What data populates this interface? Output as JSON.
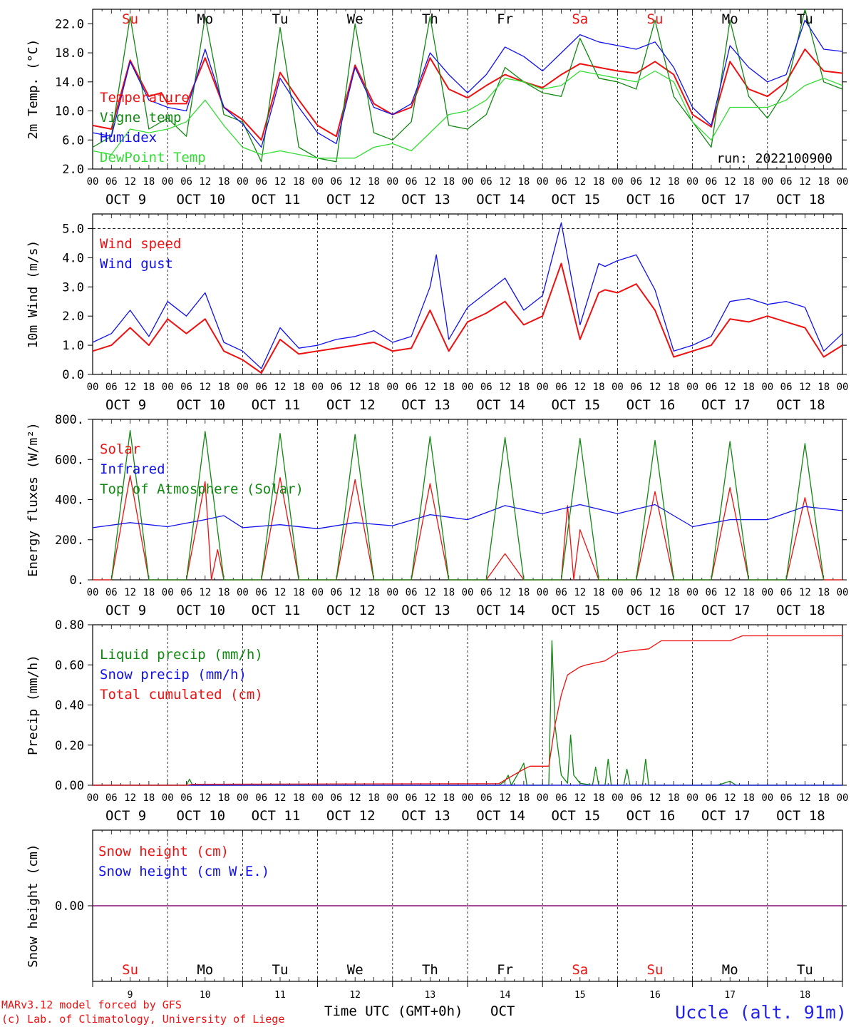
{
  "meteogram": {
    "location": "Uccle (alt. 91m)",
    "run_label": "run: 2022100900",
    "footer_line1": "MARv3.12 model forced by GFS",
    "footer_line2": "(c) Lab. of Climatology, University of Liege",
    "time_axis_label": "Time UTC (GMT+0h)",
    "month_label": "OCT",
    "hour_ticks": [
      "00",
      "06",
      "12",
      "18"
    ],
    "date_labels": [
      "OCT  9",
      "OCT 10",
      "OCT 11",
      "OCT 12",
      "OCT 13",
      "OCT 14",
      "OCT 15",
      "OCT 16",
      "OCT 17",
      "OCT 18"
    ],
    "day_numbers": [
      "9",
      "10",
      "11",
      "12",
      "13",
      "14",
      "15",
      "16",
      "17",
      "18"
    ],
    "weekdays": [
      "Su",
      "Mo",
      "Tu",
      "We",
      "Th",
      "Fr",
      "Sa",
      "Su",
      "Mo",
      "Tu"
    ],
    "weekend_flags": [
      true,
      false,
      false,
      false,
      false,
      false,
      true,
      true,
      false,
      false
    ],
    "colors": {
      "red": "#ee1111",
      "green": "#118811",
      "blue": "#1111ee",
      "lightgreen": "#33dd33",
      "purple": "#882288",
      "axis": "#000000",
      "location": "#2222ee"
    }
  },
  "chart_data": [
    {
      "id": "temperature",
      "type": "line",
      "ylabel": "2m Temp. (°C)",
      "ylim": [
        2,
        24
      ],
      "yticks": [
        2.0,
        6.0,
        10.0,
        14.0,
        18.0,
        22.0
      ],
      "ytick_labels": [
        "2.0",
        "6.0",
        "10.0",
        "14.0",
        "18.0",
        "22.0"
      ],
      "x_unit": "hours since 2022-10-09 00 UTC",
      "grid": "dashed vertical lines at midnight",
      "series": [
        {
          "name": "Temperature",
          "color": "red",
          "x": [
            0,
            6,
            12,
            18,
            22,
            24,
            30,
            36,
            42,
            48,
            54,
            60,
            66,
            72,
            78,
            84,
            90,
            96,
            102,
            108,
            114,
            120,
            126,
            132,
            138,
            144,
            150,
            156,
            162,
            168,
            174,
            180,
            186,
            192,
            198,
            204,
            210,
            216,
            222,
            228,
            234,
            240
          ],
          "y": [
            8.0,
            7.5,
            17.0,
            12.0,
            12.5,
            11.0,
            11.0,
            17.3,
            10.5,
            8.8,
            6.0,
            15.3,
            11.5,
            8.0,
            6.5,
            16.3,
            11.0,
            9.5,
            10.5,
            17.3,
            13.0,
            11.8,
            13.5,
            15.0,
            14.0,
            13.2,
            15.0,
            16.5,
            16.0,
            15.5,
            15.2,
            16.8,
            15.0,
            9.5,
            7.8,
            16.8,
            13.0,
            12.0,
            14.0,
            18.5,
            15.5,
            15.2
          ]
        },
        {
          "name": "Vigne temp",
          "color": "green",
          "x": [
            0,
            6,
            12,
            18,
            24,
            30,
            36,
            42,
            48,
            54,
            60,
            66,
            72,
            78,
            84,
            90,
            96,
            102,
            108,
            114,
            120,
            126,
            132,
            138,
            144,
            150,
            156,
            162,
            168,
            174,
            180,
            186,
            192,
            198,
            204,
            210,
            216,
            222,
            228,
            234,
            240
          ],
          "y": [
            5.0,
            6.5,
            23.0,
            7.5,
            9.0,
            6.5,
            23.0,
            9.5,
            8.5,
            3.0,
            21.5,
            5.0,
            3.5,
            3.0,
            22.0,
            7.0,
            6.0,
            8.5,
            23.0,
            8.0,
            7.5,
            9.5,
            16.0,
            14.0,
            12.5,
            12.0,
            20.0,
            14.5,
            14.0,
            13.0,
            22.5,
            12.0,
            8.5,
            5.0,
            22.5,
            12.0,
            9.0,
            13.0,
            24.0,
            14.0,
            13.0
          ]
        },
        {
          "name": "Humidex",
          "color": "blue",
          "x": [
            0,
            6,
            12,
            18,
            24,
            30,
            36,
            42,
            48,
            54,
            60,
            66,
            72,
            78,
            84,
            90,
            96,
            102,
            108,
            114,
            120,
            126,
            132,
            138,
            144,
            150,
            156,
            162,
            168,
            174,
            180,
            186,
            192,
            198,
            204,
            210,
            216,
            222,
            228,
            234,
            240
          ],
          "y": [
            7.0,
            6.5,
            16.8,
            11.5,
            10.5,
            10.0,
            18.5,
            10.5,
            8.2,
            5.0,
            14.5,
            10.5,
            7.0,
            5.5,
            16.0,
            10.5,
            9.5,
            11.0,
            18.0,
            15.0,
            12.5,
            15.0,
            18.8,
            17.5,
            15.5,
            18.0,
            20.5,
            19.5,
            19.0,
            18.5,
            19.5,
            16.0,
            10.5,
            8.0,
            19.0,
            16.0,
            14.0,
            15.0,
            22.5,
            18.5,
            18.2
          ]
        },
        {
          "name": "DewPoint Temp",
          "color": "lightgreen",
          "x": [
            0,
            6,
            12,
            18,
            24,
            30,
            36,
            42,
            48,
            54,
            60,
            66,
            72,
            78,
            84,
            90,
            96,
            102,
            108,
            114,
            120,
            126,
            132,
            138,
            144,
            150,
            156,
            162,
            168,
            174,
            180,
            186,
            192,
            198,
            204,
            210,
            216,
            222,
            228,
            234,
            240
          ],
          "y": [
            4.5,
            4.0,
            7.5,
            7.0,
            7.5,
            8.5,
            11.5,
            8.0,
            5.0,
            4.0,
            4.5,
            4.0,
            3.5,
            3.5,
            3.5,
            5.0,
            5.5,
            4.5,
            7.0,
            9.5,
            10.0,
            11.5,
            14.5,
            14.0,
            13.0,
            13.5,
            15.5,
            15.0,
            14.5,
            14.0,
            15.5,
            14.0,
            8.5,
            6.0,
            10.5,
            10.5,
            10.5,
            11.5,
            13.5,
            14.5,
            13.5
          ]
        }
      ]
    },
    {
      "id": "wind",
      "type": "line",
      "ylabel": "10m Wind (m/s)",
      "ylim": [
        0,
        5.5
      ],
      "yticks": [
        0.0,
        1.0,
        2.0,
        3.0,
        4.0,
        5.0
      ],
      "ytick_labels": [
        "0.0",
        "1.0",
        "2.0",
        "3.0",
        "4.0",
        "5.0"
      ],
      "reference_line": 5.0,
      "x_unit": "hours since 2022-10-09 00 UTC",
      "series": [
        {
          "name": "Wind speed",
          "color": "red",
          "x": [
            0,
            6,
            12,
            18,
            24,
            30,
            36,
            42,
            48,
            54,
            60,
            66,
            72,
            78,
            84,
            90,
            96,
            102,
            108,
            114,
            120,
            126,
            132,
            138,
            144,
            150,
            156,
            162,
            164,
            168,
            174,
            180,
            186,
            192,
            198,
            204,
            210,
            216,
            222,
            228,
            234,
            240
          ],
          "y": [
            0.8,
            1.0,
            1.6,
            1.0,
            1.9,
            1.4,
            1.9,
            0.8,
            0.5,
            0.05,
            1.2,
            0.7,
            0.8,
            0.9,
            1.0,
            1.1,
            0.8,
            0.9,
            2.2,
            0.8,
            1.8,
            2.1,
            2.5,
            1.7,
            2.0,
            3.8,
            1.2,
            2.8,
            2.9,
            2.8,
            3.1,
            2.2,
            0.6,
            0.8,
            1.0,
            1.9,
            1.8,
            2.0,
            1.8,
            1.6,
            0.6,
            1.0
          ]
        },
        {
          "name": "Wind gust",
          "color": "blue",
          "x": [
            0,
            6,
            12,
            18,
            24,
            30,
            36,
            42,
            48,
            54,
            60,
            66,
            72,
            78,
            84,
            90,
            96,
            102,
            108,
            110,
            114,
            120,
            126,
            132,
            138,
            144,
            150,
            156,
            162,
            164,
            168,
            174,
            180,
            186,
            192,
            198,
            204,
            210,
            216,
            222,
            228,
            234,
            240
          ],
          "y": [
            1.1,
            1.4,
            2.2,
            1.3,
            2.5,
            2.0,
            2.8,
            1.1,
            0.8,
            0.2,
            1.6,
            0.9,
            1.0,
            1.2,
            1.3,
            1.5,
            1.1,
            1.3,
            3.0,
            4.1,
            1.2,
            2.3,
            2.8,
            3.3,
            2.2,
            2.7,
            5.2,
            1.7,
            3.8,
            3.7,
            3.9,
            4.1,
            2.9,
            0.8,
            1.0,
            1.3,
            2.5,
            2.6,
            2.4,
            2.5,
            2.3,
            0.8,
            1.4
          ]
        }
      ]
    },
    {
      "id": "energy",
      "type": "line",
      "ylabel": "Energy fluxes (W/m²)",
      "ylim": [
        0,
        800
      ],
      "yticks": [
        0,
        200,
        400,
        600,
        800
      ],
      "ytick_labels": [
        "0.",
        "200.",
        "400.",
        "600.",
        "800."
      ],
      "x_unit": "hours since 2022-10-09 00 UTC",
      "series": [
        {
          "name": "Solar",
          "color": "red",
          "x": [
            0,
            6,
            12,
            18,
            24,
            30,
            36,
            38,
            40,
            42,
            48,
            54,
            60,
            66,
            72,
            78,
            84,
            90,
            96,
            102,
            108,
            114,
            120,
            126,
            132,
            138,
            144,
            150,
            152,
            154,
            156,
            162,
            168,
            174,
            180,
            186,
            192,
            198,
            204,
            210,
            216,
            222,
            228,
            234,
            240
          ],
          "y": [
            0,
            0,
            520,
            0,
            0,
            0,
            490,
            0,
            150,
            0,
            0,
            0,
            510,
            0,
            0,
            0,
            500,
            0,
            0,
            0,
            480,
            0,
            0,
            0,
            130,
            0,
            0,
            0,
            370,
            0,
            250,
            0,
            0,
            0,
            440,
            0,
            0,
            0,
            460,
            0,
            0,
            0,
            410,
            0,
            0
          ]
        },
        {
          "name": "Infrared",
          "color": "blue",
          "x": [
            0,
            12,
            24,
            36,
            42,
            48,
            60,
            72,
            84,
            96,
            108,
            120,
            132,
            144,
            156,
            168,
            180,
            192,
            204,
            216,
            228,
            240
          ],
          "y": [
            260,
            285,
            265,
            300,
            320,
            260,
            275,
            255,
            285,
            270,
            325,
            300,
            370,
            330,
            375,
            330,
            375,
            265,
            300,
            300,
            365,
            345
          ]
        },
        {
          "name": "Top of Atmosphere (Solar)",
          "color": "green",
          "x": [
            6,
            12,
            18,
            30,
            36,
            42,
            54,
            60,
            66,
            78,
            84,
            90,
            102,
            108,
            114,
            126,
            132,
            138,
            150,
            156,
            162,
            174,
            180,
            186,
            198,
            204,
            210,
            222,
            228,
            234
          ],
          "y": [
            0,
            745,
            0,
            0,
            740,
            0,
            0,
            730,
            0,
            0,
            725,
            0,
            0,
            715,
            0,
            0,
            710,
            0,
            0,
            705,
            0,
            0,
            695,
            0,
            0,
            690,
            0,
            0,
            680,
            0
          ]
        }
      ]
    },
    {
      "id": "precip",
      "type": "line",
      "ylabel": "Precip (mm/h)",
      "ylim": [
        0,
        0.8
      ],
      "yticks": [
        0.0,
        0.2,
        0.4,
        0.6,
        0.8
      ],
      "ytick_labels": [
        "0.00",
        "0.20",
        "0.40",
        "0.60",
        "0.80"
      ],
      "x_unit": "hours since 2022-10-09 00 UTC",
      "series": [
        {
          "name": "Liquid precip (mm/h)",
          "color": "green",
          "x": [
            0,
            30,
            31,
            32,
            130,
            132,
            133,
            134,
            137,
            138,
            139,
            146,
            147,
            148,
            150,
            152,
            153,
            154,
            156,
            160,
            161,
            162,
            164,
            165,
            166,
            170,
            171,
            172,
            176,
            177,
            178,
            180,
            181,
            182,
            200,
            204,
            206,
            240
          ],
          "y": [
            0,
            0,
            0.03,
            0,
            0,
            0.02,
            0.05,
            0,
            0.08,
            0.11,
            0,
            0,
            0.72,
            0.3,
            0.05,
            0.01,
            0.25,
            0.05,
            0.01,
            0,
            0.09,
            0,
            0,
            0.13,
            0,
            0,
            0.08,
            0,
            0,
            0.13,
            0,
            0,
            0,
            0,
            0,
            0.02,
            0,
            0
          ]
        },
        {
          "name": "Snow precip (mm/h)",
          "color": "blue",
          "x": [
            0,
            240
          ],
          "y": [
            0,
            0
          ]
        },
        {
          "name": "Total cumulated (cm)",
          "color": "red",
          "x": [
            0,
            30,
            32,
            130,
            138,
            140,
            146,
            148,
            150,
            152,
            156,
            158,
            164,
            168,
            172,
            178,
            182,
            204,
            208,
            240
          ],
          "y": [
            0,
            0,
            0.005,
            0.008,
            0.08,
            0.095,
            0.095,
            0.3,
            0.45,
            0.55,
            0.59,
            0.6,
            0.62,
            0.66,
            0.67,
            0.68,
            0.72,
            0.72,
            0.745,
            0.745
          ]
        }
      ]
    },
    {
      "id": "snow",
      "type": "line",
      "ylabel": "Snow height (cm)",
      "ylim": [
        -1,
        1
      ],
      "yticks": [
        0.0
      ],
      "ytick_labels": [
        "0.00"
      ],
      "x_unit": "hours since 2022-10-09 00 UTC",
      "series": [
        {
          "name": "Snow height (cm)",
          "color": "red",
          "x": [
            0,
            240
          ],
          "y": [
            0,
            0
          ]
        },
        {
          "name": "Snow height (cm W.E.)",
          "color": "blue",
          "x": [
            0,
            240
          ],
          "y": [
            0,
            0
          ]
        }
      ]
    }
  ]
}
